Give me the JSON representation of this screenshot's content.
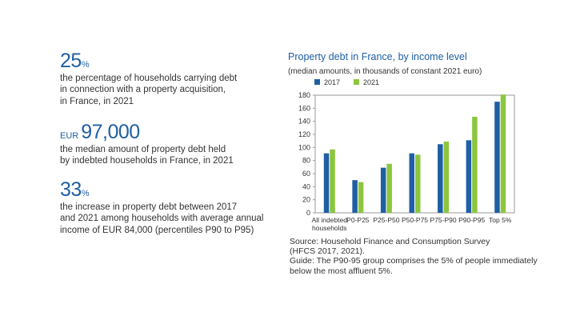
{
  "stats": [
    {
      "value": "25",
      "unit": "%",
      "prefix": "",
      "text": [
        "the percentage of households carrying debt",
        "in connection with a property acquisition,",
        "in France, in 2021"
      ]
    },
    {
      "value": "97,000",
      "unit": "",
      "prefix": "EUR",
      "text": [
        "the median amount of property debt held",
        "by indebted households in France, in 2021"
      ]
    },
    {
      "value": "33",
      "unit": "%",
      "prefix": "",
      "text": [
        "the increase in property debt between 2017",
        "and 2021 among households with average annual",
        "income of EUR 84,000 (percentiles P90 to P95)"
      ]
    }
  ],
  "chart_data": {
    "type": "bar",
    "title": "Property debt in France, by income level",
    "subtitle": "(median amounts, in thousands of constant 2021 euro)",
    "categories": [
      [
        "All indebted",
        "households"
      ],
      [
        "P0-P25"
      ],
      [
        "P25-P50"
      ],
      [
        "P50-P75"
      ],
      [
        "P75-P90"
      ],
      [
        "P90-P95"
      ],
      [
        "Top 5%"
      ]
    ],
    "series": [
      {
        "name": "2017",
        "color": "#1f5fa3",
        "values": [
          91,
          50,
          69,
          91,
          105,
          111,
          170
        ]
      },
      {
        "name": "2021",
        "color": "#8cc63f",
        "values": [
          97,
          47,
          75,
          89,
          109,
          147,
          181
        ]
      }
    ],
    "ylim": [
      0,
      180
    ],
    "yticks": [
      0,
      20,
      40,
      60,
      80,
      100,
      120,
      140,
      160,
      180
    ],
    "legend": "top",
    "grid": false
  },
  "notes": [
    "Source: Household Finance and Consumption Survey",
    "(HFCS 2017, 2021).",
    "Guide: The P90-95 group comprises the 5% of people immediately",
    "below the most affluent 5%."
  ]
}
